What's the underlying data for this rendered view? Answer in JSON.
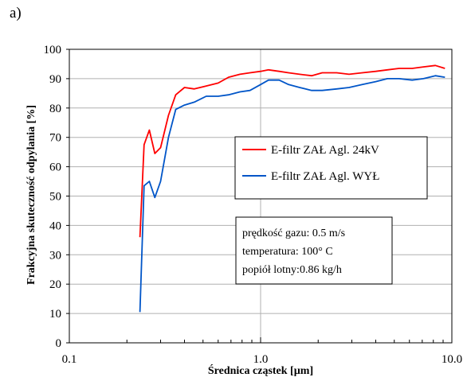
{
  "panel_label": "a)",
  "chart_data": {
    "type": "line",
    "title": "",
    "xlabel": "Średnica cząstek [µm]",
    "ylabel": "Frakcyjna skuteczność odpylania [%]",
    "xscale": "log",
    "xlim": [
      0.1,
      10.0
    ],
    "ylim": [
      0,
      100
    ],
    "x_ticks": [
      {
        "value": 0.1,
        "label": "0.1"
      },
      {
        "value": 1.0,
        "label": "1.0"
      },
      {
        "value": 10.0,
        "label": "10.0"
      }
    ],
    "y_ticks": [
      0,
      10,
      20,
      30,
      40,
      50,
      60,
      70,
      80,
      90,
      100
    ],
    "grid": "y-major, x-decade",
    "legend_placement": "right-middle",
    "series": [
      {
        "name": "E-filtr ZAŁ Agl. 24kV",
        "color": "#ff0000",
        "x": [
          0.234,
          0.246,
          0.262,
          0.28,
          0.3,
          0.33,
          0.36,
          0.4,
          0.45,
          0.52,
          0.6,
          0.68,
          0.78,
          0.88,
          1.0,
          1.1,
          1.25,
          1.4,
          1.6,
          1.85,
          2.1,
          2.5,
          2.9,
          3.4,
          4.0,
          4.6,
          5.3,
          6.2,
          7.1,
          8.2,
          9.2
        ],
        "y": [
          36,
          67.5,
          72.5,
          64.5,
          66.5,
          77.5,
          84.5,
          87,
          86.5,
          87.5,
          88.5,
          90.5,
          91.5,
          92,
          92.5,
          93,
          92.5,
          92,
          91.5,
          91,
          92,
          92,
          91.5,
          92,
          92.5,
          93,
          93.5,
          93.5,
          94,
          94.5,
          93.5
        ]
      },
      {
        "name": "E-filtr ZAŁ Agl. WYŁ",
        "color": "#0055c8",
        "x": [
          0.234,
          0.246,
          0.262,
          0.28,
          0.3,
          0.33,
          0.36,
          0.4,
          0.45,
          0.52,
          0.6,
          0.68,
          0.78,
          0.88,
          1.0,
          1.1,
          1.25,
          1.4,
          1.6,
          1.85,
          2.1,
          2.5,
          2.9,
          3.4,
          4.0,
          4.6,
          5.3,
          6.2,
          7.1,
          8.2,
          9.2
        ],
        "y": [
          10.5,
          53.5,
          55,
          49.5,
          55,
          70,
          79.5,
          81,
          82,
          84,
          84,
          84.5,
          85.5,
          86,
          88,
          89.5,
          89.5,
          88,
          87,
          86,
          86,
          86.5,
          87,
          88,
          89,
          90,
          90,
          89.5,
          90,
          91,
          90.5
        ]
      }
    ],
    "annotation_lines": [
      "prędkość  gazu:  0.5 m/s",
      "temperatura:  100° C",
      "popiół lotny:0.86 kg/h"
    ]
  }
}
